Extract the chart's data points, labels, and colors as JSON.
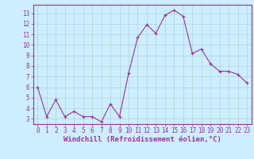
{
  "x": [
    0,
    1,
    2,
    3,
    4,
    5,
    6,
    7,
    8,
    9,
    10,
    11,
    12,
    13,
    14,
    15,
    16,
    17,
    18,
    19,
    20,
    21,
    22,
    23
  ],
  "y": [
    6.0,
    3.2,
    4.8,
    3.2,
    3.7,
    3.2,
    3.2,
    2.7,
    4.4,
    3.2,
    7.3,
    10.7,
    11.9,
    11.1,
    12.8,
    13.3,
    12.7,
    9.2,
    9.6,
    8.2,
    7.5,
    7.5,
    7.2,
    6.4
  ],
  "line_color": "#993399",
  "marker": "+",
  "marker_size": 3,
  "bg_color": "#cceeff",
  "grid_color": "#aacccc",
  "xlabel": "Windchill (Refroidissement éolien,°C)",
  "xlabel_color": "#993399",
  "tick_color": "#993399",
  "spine_color": "#993399",
  "ylim": [
    2.5,
    13.8
  ],
  "xlim": [
    -0.5,
    23.5
  ],
  "yticks": [
    3,
    4,
    5,
    6,
    7,
    8,
    9,
    10,
    11,
    12,
    13
  ],
  "xticks": [
    0,
    1,
    2,
    3,
    4,
    5,
    6,
    7,
    8,
    9,
    10,
    11,
    12,
    13,
    14,
    15,
    16,
    17,
    18,
    19,
    20,
    21,
    22,
    23
  ],
  "tick_fontsize": 5.5,
  "xlabel_fontsize": 6.5,
  "linewidth": 0.8,
  "markeredgewidth": 0.8
}
